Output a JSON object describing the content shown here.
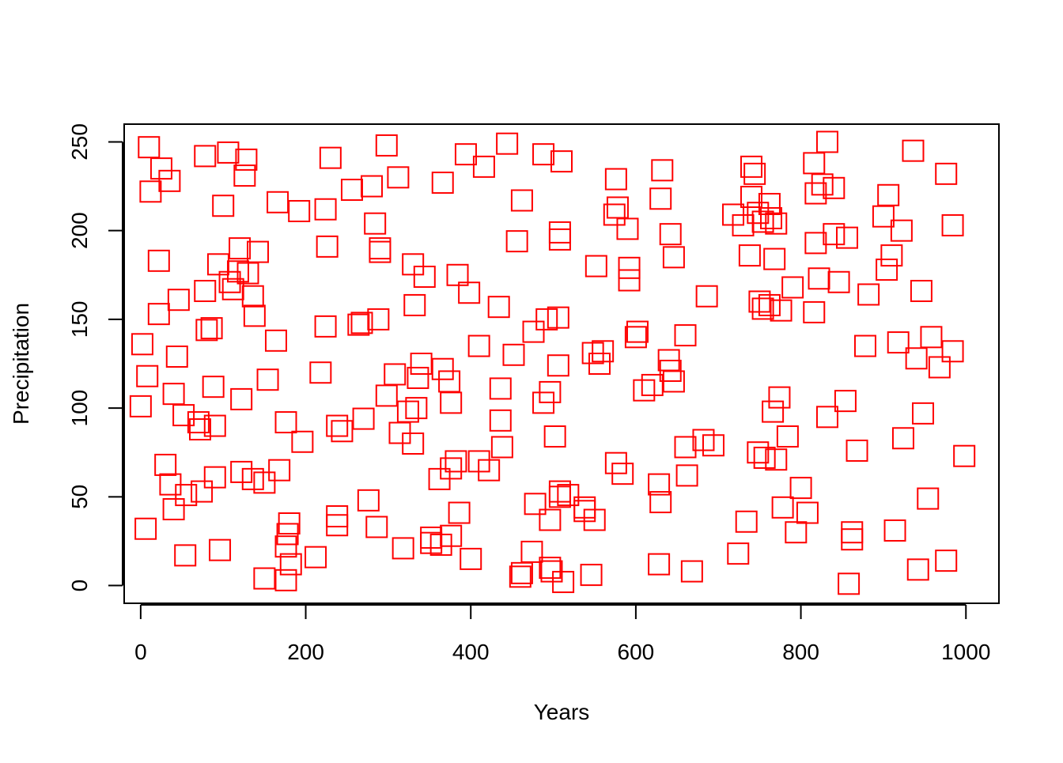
{
  "chart_data": {
    "type": "scatter",
    "title": "",
    "xlabel": "Years",
    "ylabel": "Precipitation",
    "xlim": [
      -20,
      1040
    ],
    "ylim": [
      -10,
      260
    ],
    "xticks": [
      0,
      200,
      400,
      600,
      800,
      1000
    ],
    "yticks": [
      0,
      50,
      100,
      150,
      200,
      250
    ],
    "grid": false,
    "legend": "none",
    "marker": "open-square",
    "color": "#ff0000",
    "series": [
      {
        "points": [
          [
            10,
            247
          ],
          [
            25,
            235
          ],
          [
            35,
            228
          ],
          [
            12,
            222
          ],
          [
            22,
            183
          ],
          [
            22,
            153
          ],
          [
            46,
            161
          ],
          [
            44,
            129
          ],
          [
            2,
            136
          ],
          [
            8,
            118
          ],
          [
            0,
            101
          ],
          [
            40,
            108
          ],
          [
            52,
            96
          ],
          [
            70,
            92
          ],
          [
            72,
            88
          ],
          [
            90,
            90
          ],
          [
            88,
            112
          ],
          [
            30,
            68
          ],
          [
            36,
            57
          ],
          [
            40,
            43
          ],
          [
            55,
            51
          ],
          [
            74,
            53
          ],
          [
            90,
            61
          ],
          [
            6,
            32
          ],
          [
            54,
            17
          ],
          [
            96,
            20
          ],
          [
            78,
            242
          ],
          [
            106,
            244
          ],
          [
            128,
            240
          ],
          [
            126,
            231
          ],
          [
            100,
            214
          ],
          [
            78,
            166
          ],
          [
            80,
            144
          ],
          [
            86,
            145
          ],
          [
            94,
            181
          ],
          [
            120,
            190
          ],
          [
            118,
            177
          ],
          [
            108,
            171
          ],
          [
            112,
            167
          ],
          [
            130,
            176
          ],
          [
            136,
            163
          ],
          [
            138,
            152
          ],
          [
            142,
            188
          ],
          [
            164,
            138
          ],
          [
            154,
            116
          ],
          [
            122,
            105
          ],
          [
            122,
            64
          ],
          [
            136,
            60
          ],
          [
            150,
            58
          ],
          [
            168,
            65
          ],
          [
            176,
            92
          ],
          [
            196,
            81
          ],
          [
            180,
            35
          ],
          [
            178,
            29
          ],
          [
            176,
            22
          ],
          [
            182,
            12
          ],
          [
            176,
            3
          ],
          [
            150,
            4
          ],
          [
            166,
            216
          ],
          [
            192,
            211
          ],
          [
            224,
            212
          ],
          [
            226,
            191
          ],
          [
            230,
            241
          ],
          [
            224,
            146
          ],
          [
            218,
            120
          ],
          [
            238,
            90
          ],
          [
            244,
            87
          ],
          [
            238,
            39
          ],
          [
            238,
            34
          ],
          [
            212,
            16
          ],
          [
            256,
            223
          ],
          [
            280,
            225
          ],
          [
            284,
            204
          ],
          [
            290,
            190
          ],
          [
            290,
            188
          ],
          [
            264,
            147
          ],
          [
            268,
            148
          ],
          [
            288,
            150
          ],
          [
            298,
            107
          ],
          [
            270,
            94
          ],
          [
            276,
            48
          ],
          [
            286,
            33
          ],
          [
            318,
            21
          ],
          [
            314,
            86
          ],
          [
            324,
            98
          ],
          [
            334,
            100
          ],
          [
            308,
            119
          ],
          [
            330,
            80
          ],
          [
            298,
            248
          ],
          [
            312,
            230
          ],
          [
            330,
            181
          ],
          [
            344,
            174
          ],
          [
            332,
            158
          ],
          [
            340,
            125
          ],
          [
            336,
            117
          ],
          [
            362,
            60
          ],
          [
            376,
            66
          ],
          [
            382,
            70
          ],
          [
            374,
            115
          ],
          [
            366,
            122
          ],
          [
            376,
            103
          ],
          [
            352,
            27
          ],
          [
            352,
            24
          ],
          [
            364,
            23
          ],
          [
            376,
            28
          ],
          [
            386,
            41
          ],
          [
            400,
            15
          ],
          [
            394,
            243
          ],
          [
            384,
            175
          ],
          [
            398,
            165
          ],
          [
            416,
            236
          ],
          [
            410,
            135
          ],
          [
            410,
            70
          ],
          [
            422,
            65
          ],
          [
            434,
            157
          ],
          [
            436,
            111
          ],
          [
            436,
            93
          ],
          [
            438,
            78
          ],
          [
            366,
            227
          ],
          [
            444,
            249
          ],
          [
            456,
            194
          ],
          [
            462,
            217
          ],
          [
            452,
            130
          ],
          [
            476,
            143
          ],
          [
            492,
            150
          ],
          [
            488,
            103
          ],
          [
            496,
            109
          ],
          [
            506,
            151
          ],
          [
            506,
            124
          ],
          [
            502,
            84
          ],
          [
            496,
            37
          ],
          [
            508,
            50
          ],
          [
            508,
            53
          ],
          [
            518,
            51
          ],
          [
            538,
            44
          ],
          [
            538,
            42
          ],
          [
            550,
            37
          ],
          [
            546,
            6
          ],
          [
            512,
            2
          ],
          [
            496,
            10
          ],
          [
            498,
            8
          ],
          [
            462,
            7
          ],
          [
            460,
            5
          ],
          [
            474,
            19
          ],
          [
            478,
            46
          ],
          [
            488,
            243
          ],
          [
            510,
            239
          ],
          [
            508,
            199
          ],
          [
            508,
            195
          ],
          [
            548,
            131
          ],
          [
            556,
            125
          ],
          [
            560,
            132
          ],
          [
            552,
            180
          ],
          [
            576,
            229
          ],
          [
            574,
            209
          ],
          [
            578,
            213
          ],
          [
            590,
            201
          ],
          [
            576,
            69
          ],
          [
            584,
            63
          ],
          [
            592,
            179
          ],
          [
            592,
            172
          ],
          [
            602,
            143
          ],
          [
            600,
            140
          ],
          [
            610,
            110
          ],
          [
            620,
            113
          ],
          [
            640,
            127
          ],
          [
            642,
            121
          ],
          [
            646,
            115
          ],
          [
            632,
            234
          ],
          [
            630,
            218
          ],
          [
            642,
            198
          ],
          [
            646,
            185
          ],
          [
            660,
            141
          ],
          [
            628,
            57
          ],
          [
            630,
            47
          ],
          [
            628,
            12
          ],
          [
            660,
            78
          ],
          [
            662,
            62
          ],
          [
            668,
            8
          ],
          [
            686,
            163
          ],
          [
            682,
            82
          ],
          [
            694,
            79
          ],
          [
            718,
            209
          ],
          [
            730,
            203
          ],
          [
            738,
            186
          ],
          [
            740,
            219
          ],
          [
            740,
            236
          ],
          [
            744,
            232
          ],
          [
            748,
            210
          ],
          [
            754,
            205
          ],
          [
            762,
            215
          ],
          [
            764,
            207
          ],
          [
            770,
            204
          ],
          [
            768,
            184
          ],
          [
            750,
            160
          ],
          [
            754,
            156
          ],
          [
            762,
            158
          ],
          [
            776,
            155
          ],
          [
            748,
            75
          ],
          [
            756,
            72
          ],
          [
            770,
            71
          ],
          [
            766,
            98
          ],
          [
            774,
            106
          ],
          [
            778,
            44
          ],
          [
            784,
            84
          ],
          [
            790,
            168
          ],
          [
            794,
            30
          ],
          [
            800,
            55
          ],
          [
            808,
            41
          ],
          [
            724,
            18
          ],
          [
            734,
            36
          ],
          [
            818,
            221
          ],
          [
            816,
            238
          ],
          [
            826,
            226
          ],
          [
            832,
            250
          ],
          [
            840,
            224
          ],
          [
            818,
            193
          ],
          [
            840,
            198
          ],
          [
            846,
            171
          ],
          [
            816,
            154
          ],
          [
            822,
            173
          ],
          [
            856,
            196
          ],
          [
            832,
            95
          ],
          [
            854,
            104
          ],
          [
            868,
            76
          ],
          [
            858,
            1
          ],
          [
            862,
            30
          ],
          [
            862,
            26
          ],
          [
            882,
            164
          ],
          [
            878,
            135
          ],
          [
            900,
            208
          ],
          [
            906,
            220
          ],
          [
            910,
            186
          ],
          [
            904,
            178
          ],
          [
            922,
            200
          ],
          [
            918,
            137
          ],
          [
            914,
            31
          ],
          [
            924,
            83
          ],
          [
            936,
            245
          ],
          [
            946,
            166
          ],
          [
            940,
            128
          ],
          [
            948,
            97
          ],
          [
            942,
            9
          ],
          [
            958,
            140
          ],
          [
            954,
            49
          ],
          [
            968,
            123
          ],
          [
            976,
            232
          ],
          [
            976,
            14
          ],
          [
            984,
            203
          ],
          [
            984,
            132
          ],
          [
            998,
            73
          ]
        ]
      }
    ]
  }
}
